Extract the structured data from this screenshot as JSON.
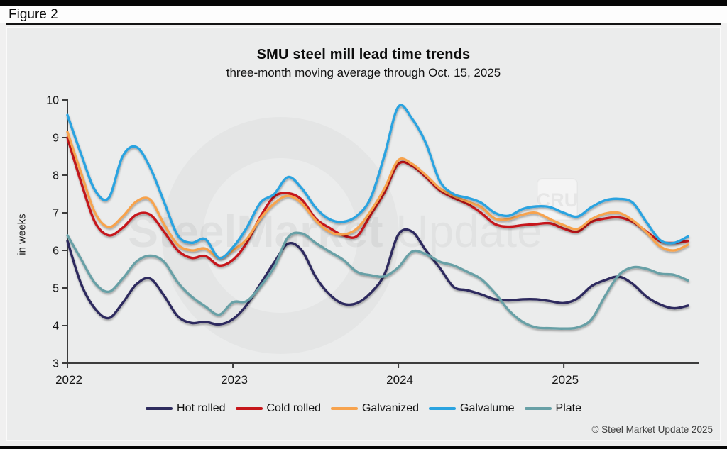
{
  "figure_label": "Figure 2",
  "title": "SMU steel mill lead time trends",
  "subtitle": "three-month moving average through Oct. 15, 2025",
  "copyright": "© Steel Market Update 2025",
  "watermark": {
    "brand_bold": "SteelMarket",
    "brand_light": " Update",
    "cru_badge": "CRU"
  },
  "chart_data": {
    "type": "line",
    "title": "SMU steel mill lead time trends",
    "subtitle": "three-month moving average through Oct. 15, 2025",
    "ylabel": "in weeks",
    "ylim": [
      3,
      10
    ],
    "yticks": [
      3,
      4,
      5,
      6,
      7,
      8,
      9,
      10
    ],
    "x_start": "2022-01",
    "x_end": "2025-10",
    "x_year_labels": [
      "2022",
      "2023",
      "2024",
      "2025"
    ],
    "grid": false,
    "legend_position": "bottom",
    "series": [
      {
        "name": "Hot rolled",
        "color": "#2e2c5e",
        "values": [
          6.25,
          5.1,
          4.45,
          4.2,
          4.6,
          5.1,
          5.25,
          4.8,
          4.25,
          4.07,
          4.1,
          4.03,
          4.17,
          4.55,
          5.11,
          5.68,
          6.18,
          6.0,
          5.3,
          4.83,
          4.58,
          4.6,
          4.87,
          5.37,
          6.42,
          6.5,
          6.0,
          5.54,
          5.03,
          4.94,
          4.83,
          4.7,
          4.67,
          4.7,
          4.7,
          4.65,
          4.6,
          4.72,
          5.05,
          5.21,
          5.3,
          5.11,
          4.77,
          4.56,
          4.46,
          4.53
        ]
      },
      {
        "name": "Cold rolled",
        "color": "#c6171b",
        "values": [
          9.0,
          7.8,
          6.75,
          6.4,
          6.6,
          6.95,
          6.95,
          6.5,
          6.0,
          5.8,
          5.85,
          5.6,
          5.75,
          6.2,
          6.9,
          7.43,
          7.52,
          7.35,
          6.85,
          6.6,
          6.4,
          6.38,
          6.95,
          7.55,
          8.3,
          8.25,
          7.95,
          7.6,
          7.4,
          7.24,
          7.0,
          6.7,
          6.63,
          6.67,
          6.7,
          6.72,
          6.58,
          6.5,
          6.76,
          6.85,
          6.88,
          6.76,
          6.5,
          6.24,
          6.2,
          6.25
        ]
      },
      {
        "name": "Galvanized",
        "color": "#f7a34e",
        "values": [
          9.15,
          8.05,
          7.0,
          6.62,
          6.9,
          7.3,
          7.35,
          6.7,
          6.15,
          6.0,
          6.05,
          5.8,
          6.0,
          6.3,
          6.85,
          7.25,
          7.45,
          7.25,
          6.8,
          6.5,
          6.42,
          6.58,
          7.05,
          7.65,
          8.4,
          8.3,
          8.0,
          7.65,
          7.45,
          7.3,
          7.15,
          6.85,
          6.83,
          6.95,
          7.0,
          6.83,
          6.67,
          6.57,
          6.83,
          6.98,
          7.0,
          6.8,
          6.48,
          6.1,
          6.0,
          6.15
        ]
      },
      {
        "name": "Galvalume",
        "color": "#2aa3e0",
        "values": [
          9.6,
          8.55,
          7.6,
          7.4,
          8.5,
          8.75,
          8.2,
          7.3,
          6.4,
          6.2,
          6.3,
          5.8,
          6.08,
          6.6,
          7.27,
          7.5,
          7.95,
          7.65,
          7.14,
          6.83,
          6.76,
          6.92,
          7.4,
          8.54,
          9.82,
          9.5,
          8.85,
          7.85,
          7.5,
          7.4,
          7.27,
          7.0,
          6.92,
          7.1,
          7.17,
          7.15,
          7.0,
          6.9,
          7.15,
          7.33,
          7.37,
          7.27,
          6.75,
          6.27,
          6.2,
          6.37
        ]
      },
      {
        "name": "Plate",
        "color": "#68a0a6",
        "values": [
          6.4,
          5.76,
          5.13,
          4.9,
          5.25,
          5.7,
          5.86,
          5.7,
          5.15,
          4.77,
          4.51,
          4.29,
          4.62,
          4.65,
          5.05,
          5.56,
          6.35,
          6.45,
          6.2,
          5.97,
          5.75,
          5.43,
          5.34,
          5.31,
          5.55,
          5.97,
          5.9,
          5.7,
          5.6,
          5.43,
          5.24,
          4.87,
          4.41,
          4.1,
          3.95,
          3.93,
          3.92,
          3.95,
          4.16,
          4.79,
          5.35,
          5.55,
          5.51,
          5.38,
          5.35,
          5.2
        ]
      }
    ]
  }
}
